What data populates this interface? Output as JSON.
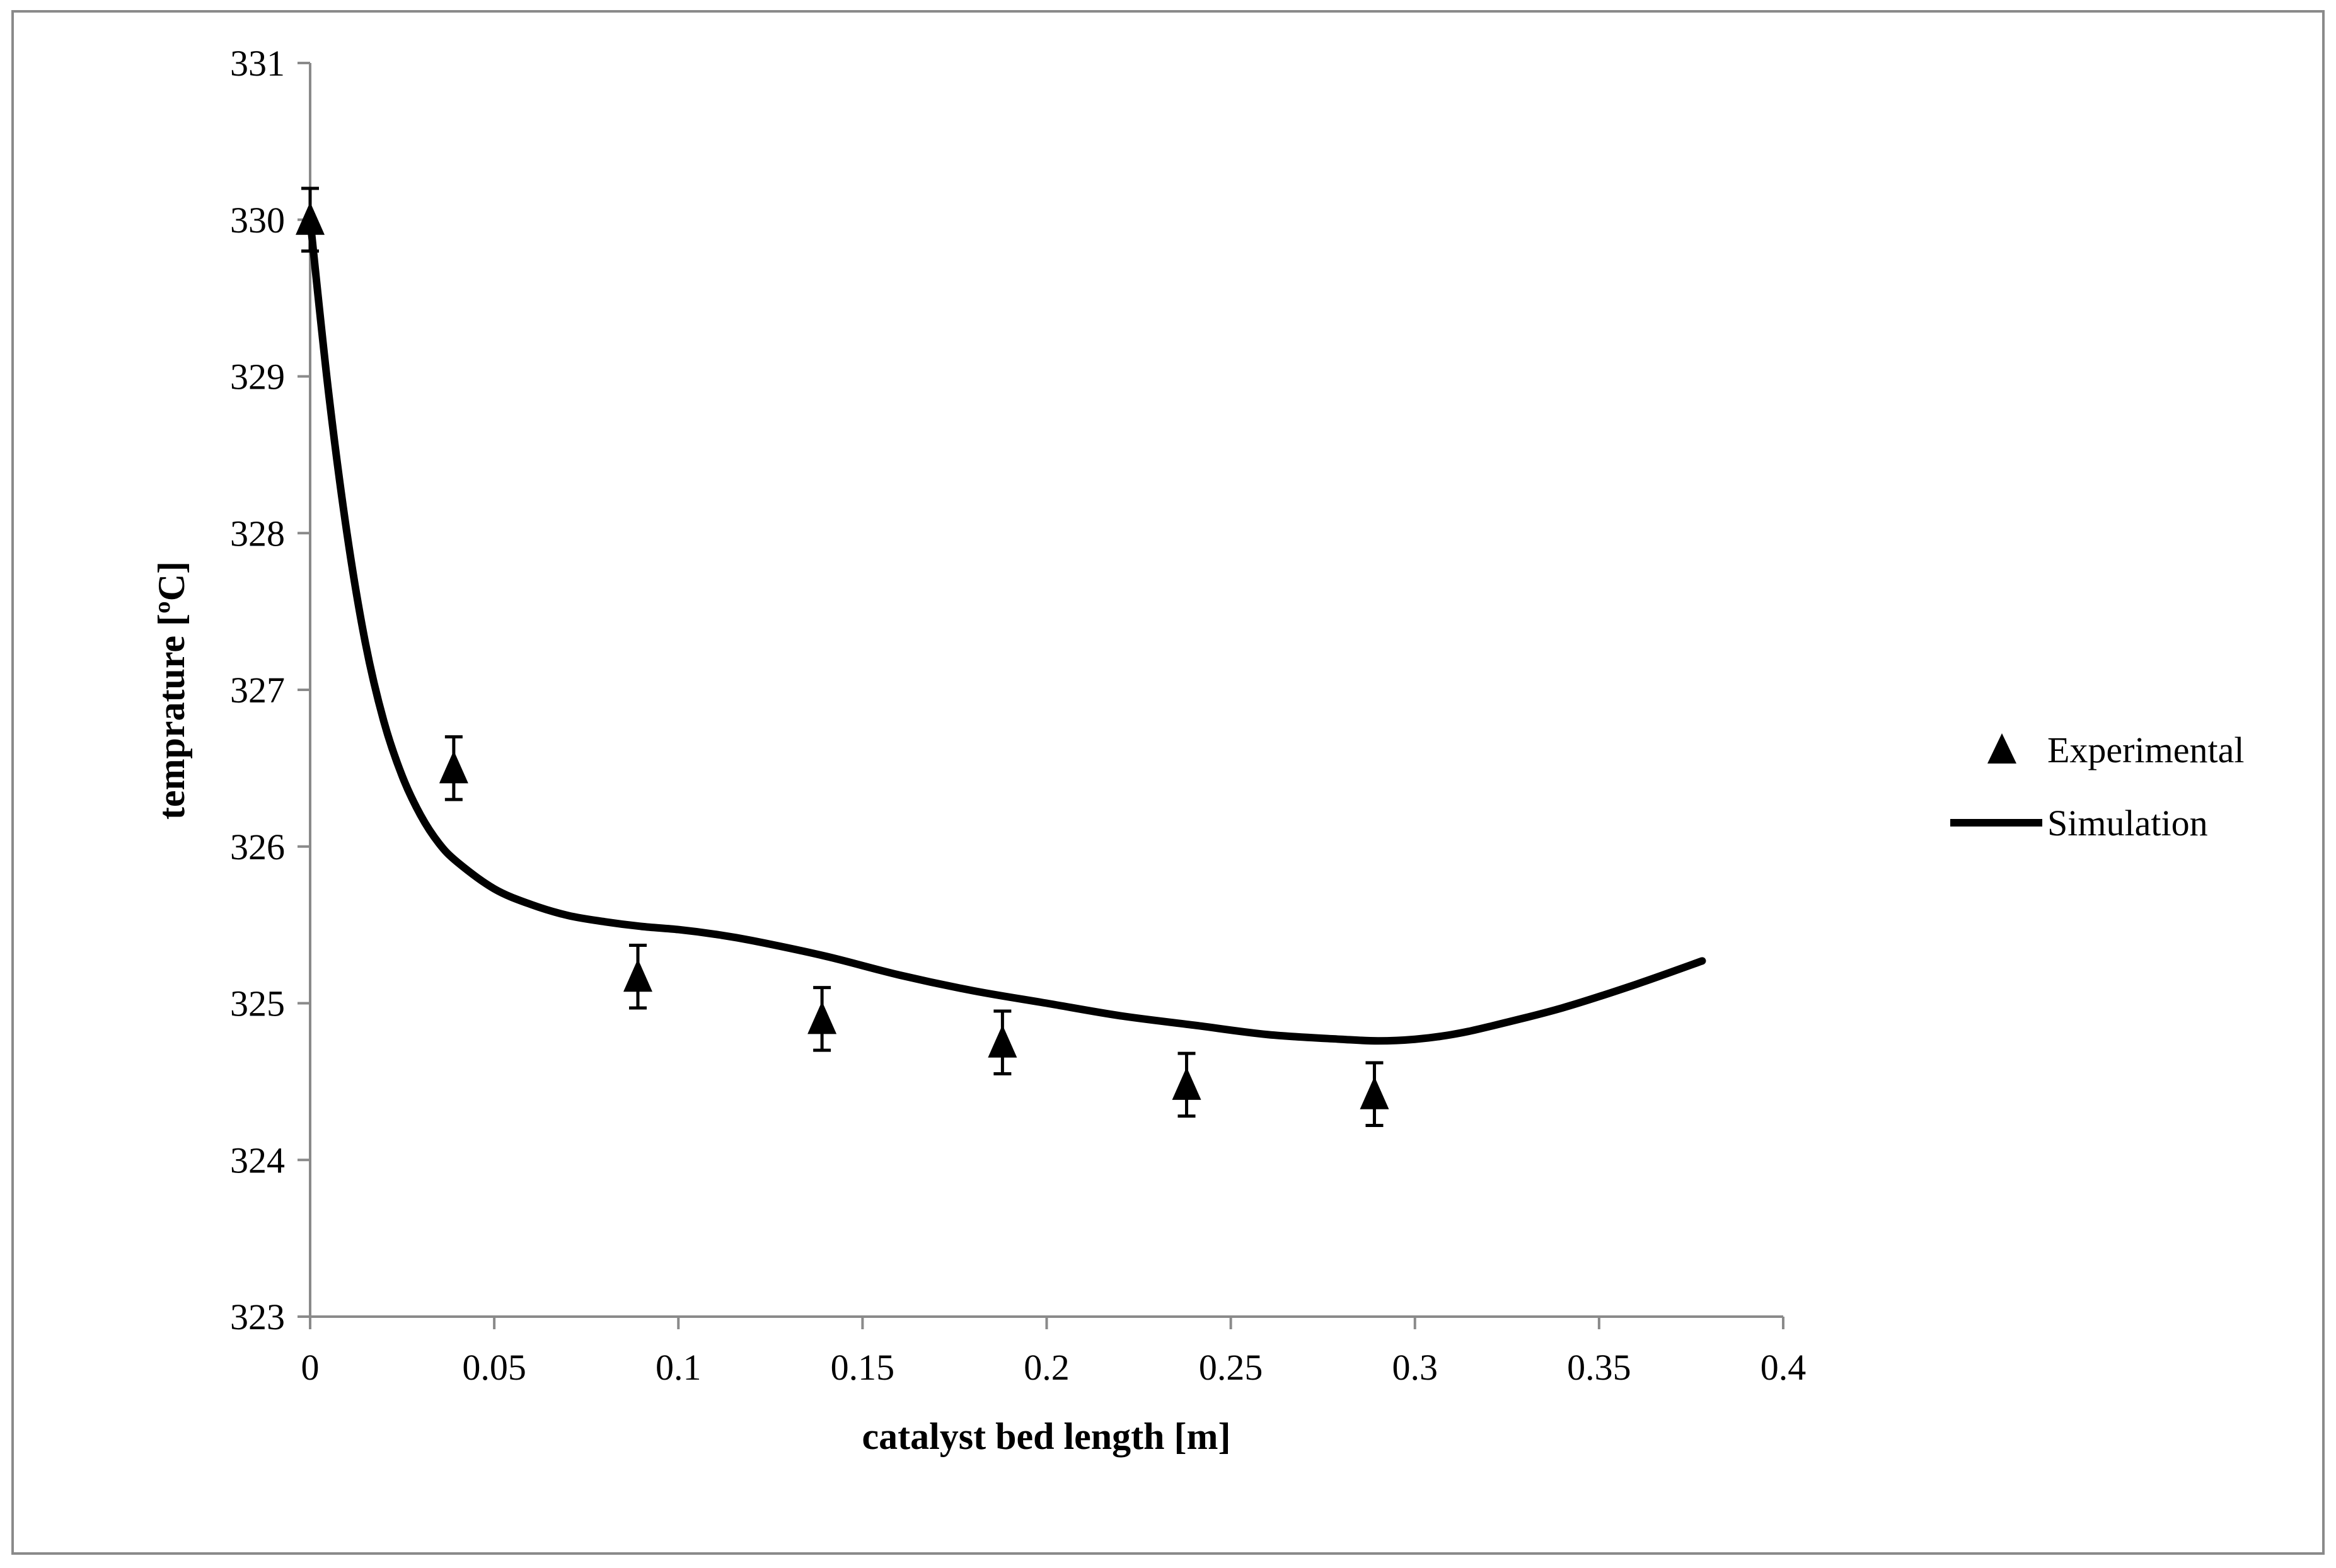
{
  "chart_data": {
    "type": "scatter",
    "title": "",
    "xlabel": "catalyst bed length  [m]",
    "ylabel": "temprature [ºC]",
    "xlim": [
      0,
      0.4
    ],
    "ylim": [
      323,
      331
    ],
    "x_ticks": [
      0,
      0.05,
      0.1,
      0.15,
      0.2,
      0.25,
      0.3,
      0.35,
      0.4
    ],
    "x_tick_labels": [
      "0",
      "0.05",
      "0.1",
      "0.15",
      "0.2",
      "0.25",
      "0.3",
      "0.35",
      "0.4"
    ],
    "y_ticks": [
      323,
      324,
      325,
      326,
      327,
      328,
      329,
      330,
      331
    ],
    "y_tick_labels": [
      "323",
      "324",
      "325",
      "326",
      "327",
      "328",
      "329",
      "330",
      "331"
    ],
    "grid": false,
    "legend_position": "right",
    "series": [
      {
        "name": "Experimental",
        "kind": "marker",
        "color": "#000000",
        "x": [
          0,
          0.039,
          0.089,
          0.139,
          0.188,
          0.238,
          0.289
        ],
        "y": [
          330.0,
          326.5,
          325.17,
          324.9,
          324.75,
          324.48,
          324.42
        ],
        "error": 0.2
      },
      {
        "name": "Simulation",
        "kind": "line",
        "color": "#000000",
        "x": [
          0,
          0.005,
          0.01,
          0.015,
          0.02,
          0.025,
          0.03,
          0.035,
          0.04,
          0.05,
          0.06,
          0.07,
          0.08,
          0.09,
          0.1,
          0.11,
          0.12,
          0.14,
          0.16,
          0.18,
          0.2,
          0.22,
          0.24,
          0.26,
          0.28,
          0.29,
          0.3,
          0.31,
          0.32,
          0.34,
          0.36,
          0.378
        ],
        "y": [
          330.0,
          328.9,
          328.0,
          327.3,
          326.8,
          326.45,
          326.2,
          326.02,
          325.9,
          325.73,
          325.63,
          325.56,
          325.52,
          325.49,
          325.47,
          325.44,
          325.4,
          325.3,
          325.18,
          325.08,
          325.0,
          324.92,
          324.86,
          324.8,
          324.77,
          324.76,
          324.77,
          324.8,
          324.85,
          324.97,
          325.12,
          325.27
        ]
      }
    ]
  }
}
